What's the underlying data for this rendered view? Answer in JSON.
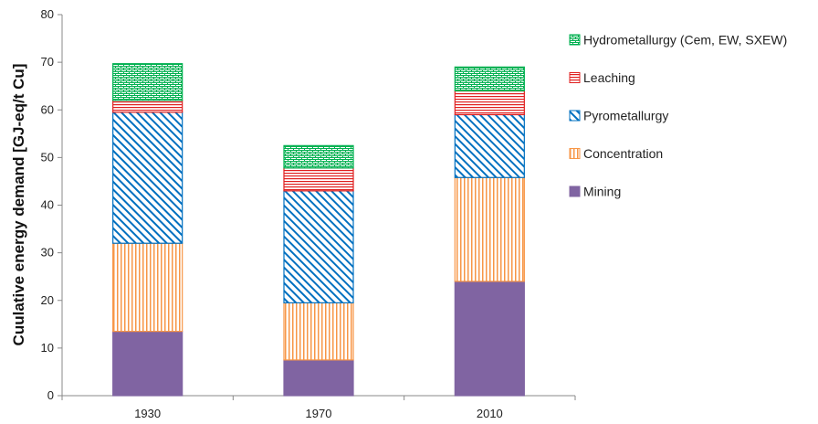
{
  "chart_data": {
    "type": "bar",
    "stacked": true,
    "title": "",
    "xlabel": "",
    "ylabel": "Cuulative energy demand [GJ-eq/t Cu]",
    "ylim": [
      0,
      80
    ],
    "yticks": [
      0,
      10,
      20,
      30,
      40,
      50,
      60,
      70,
      80
    ],
    "grid": false,
    "legend_position": "right",
    "categories": [
      "1930",
      "1970",
      "2010"
    ],
    "series": [
      {
        "name": "Mining",
        "values": [
          13.5,
          7.5,
          24
        ],
        "color": "#8064A2",
        "pattern": "solid"
      },
      {
        "name": "Concentration",
        "values": [
          18.5,
          12,
          21.8
        ],
        "color": "#F79646",
        "pattern": "vertical"
      },
      {
        "name": "Pyrometallurgy",
        "values": [
          27.5,
          23.5,
          13.2
        ],
        "color": "#0070C0",
        "pattern": "diagonal"
      },
      {
        "name": "Leaching",
        "values": [
          2.5,
          4.8,
          5
        ],
        "color": "#E02020",
        "pattern": "horizontal"
      },
      {
        "name": "Hydrometallurgy (Cem, EW, SXEW)",
        "values": [
          7.7,
          4.7,
          5
        ],
        "color": "#00B050",
        "pattern": "brick"
      }
    ]
  }
}
